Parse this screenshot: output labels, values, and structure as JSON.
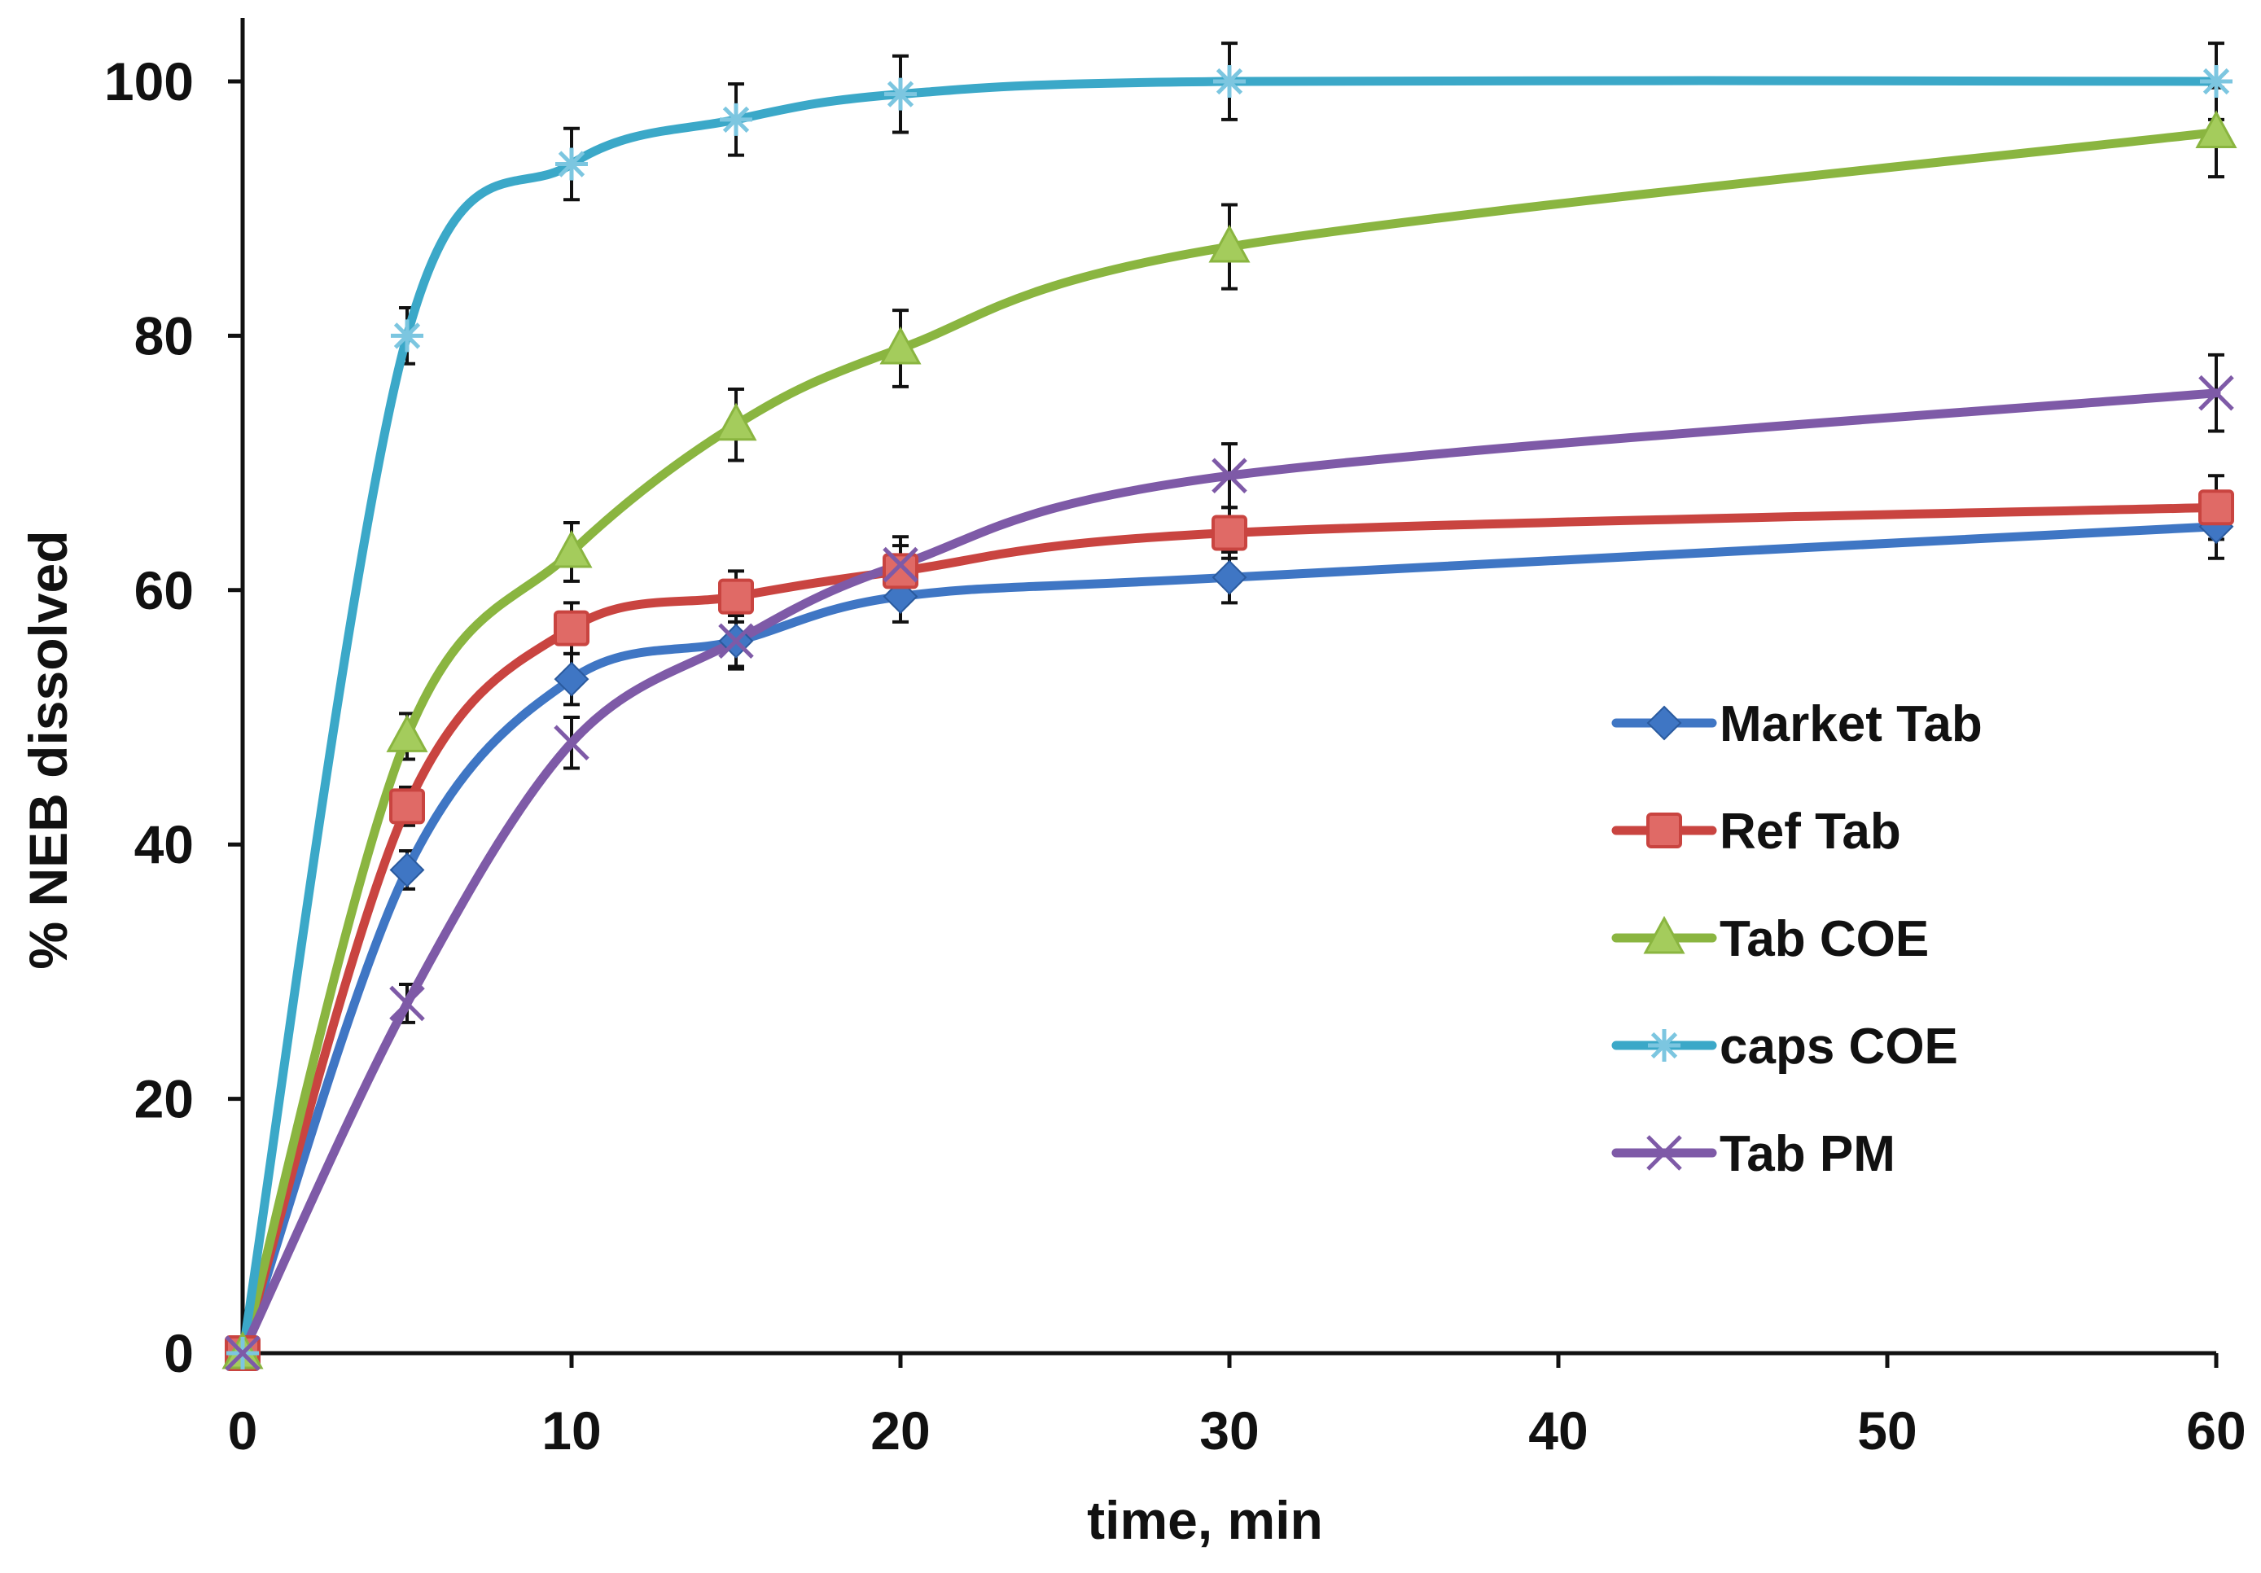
{
  "chart_data": {
    "type": "line",
    "title": "",
    "xlabel": "time, min",
    "ylabel": "% NEB dissolved",
    "xlim": [
      0,
      60
    ],
    "ylim": [
      0,
      100
    ],
    "xticks": [
      0,
      10,
      20,
      30,
      40,
      50,
      60
    ],
    "yticks": [
      0,
      20,
      40,
      60,
      80,
      100
    ],
    "grid": false,
    "legend_position": "right",
    "x": [
      0,
      5,
      10,
      15,
      20,
      30,
      60
    ],
    "series": [
      {
        "name": "Market Tab",
        "color": "#3f76c4",
        "marker": "diamond",
        "values": [
          0,
          38,
          53,
          56,
          59.5,
          61,
          65
        ],
        "errors": [
          0,
          1.5,
          2,
          2,
          2,
          2,
          2.5
        ]
      },
      {
        "name": "Ref Tab",
        "color": "#c94440",
        "marker": "square",
        "values": [
          0,
          43,
          57,
          59.5,
          61.5,
          64.5,
          66.5
        ],
        "errors": [
          0,
          1.5,
          2,
          2,
          2,
          2,
          2.5
        ]
      },
      {
        "name": "Tab COE",
        "color": "#8ab540",
        "marker": "triangle",
        "values": [
          0,
          48.5,
          63,
          73,
          79,
          87,
          96
        ],
        "errors": [
          0,
          1.8,
          2.3,
          2.8,
          3,
          3.3,
          3.5
        ]
      },
      {
        "name": "caps COE",
        "color": "#3ba8c8",
        "marker": "asterisk",
        "values": [
          0,
          80,
          93.5,
          97,
          99,
          100,
          100
        ],
        "errors": [
          0,
          2.2,
          2.8,
          2.8,
          3,
          3,
          3
        ]
      },
      {
        "name": "Tab PM",
        "color": "#7e5aa7",
        "marker": "x",
        "values": [
          0,
          27.5,
          48,
          56,
          62,
          69,
          75.5
        ],
        "errors": [
          0,
          1.5,
          2,
          2.2,
          2.2,
          2.5,
          3
        ]
      }
    ]
  }
}
